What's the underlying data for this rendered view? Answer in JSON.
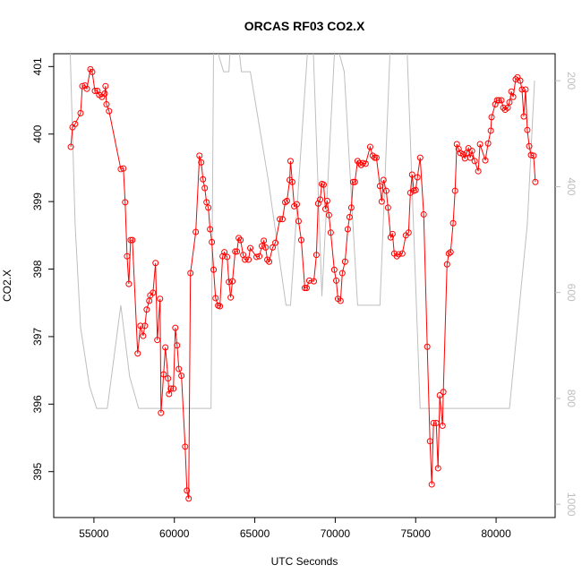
{
  "chart_data": {
    "type": "line",
    "title": "ORCAS RF03 CO2.X",
    "xlabel": "UTC Seconds",
    "ylabel": "CO2.X",
    "xlim": [
      52500,
      83670
    ],
    "ylim": [
      394.32,
      401.19
    ],
    "y2lim": [
      1025,
      149
    ],
    "xticks": [
      55000,
      60000,
      65000,
      70000,
      75000,
      80000
    ],
    "yticks": [
      395,
      396,
      397,
      398,
      399,
      400,
      401
    ],
    "y2ticks": [
      200,
      400,
      600,
      800,
      1000
    ],
    "grid": false,
    "series": [
      {
        "color": "#ff0000",
        "markers": true,
        "axis": "y",
        "x": [
          53560,
          53670,
          53830,
          54170,
          54280,
          54440,
          54560,
          54780,
          54890,
          55060,
          55220,
          55330,
          55500,
          55670,
          55720,
          55780,
          55940,
          56670,
          56830,
          56940,
          57060,
          57170,
          57280,
          57390,
          57720,
          57890,
          58060,
          58170,
          58280,
          58440,
          58500,
          58670,
          58830,
          58940,
          59110,
          59170,
          59330,
          59440,
          59610,
          59670,
          59780,
          59940,
          60060,
          60170,
          60280,
          60440,
          60670,
          60780,
          60890,
          61000,
          61330,
          61560,
          61670,
          61780,
          61890,
          62000,
          62110,
          62220,
          62330,
          62440,
          62560,
          62720,
          62830,
          63000,
          63110,
          63280,
          63390,
          63500,
          63610,
          63780,
          63890,
          64000,
          64110,
          64280,
          64390,
          64610,
          64720,
          65110,
          65280,
          65440,
          65560,
          65670,
          65780,
          65890,
          66110,
          66280,
          66560,
          66720,
          66890,
          67000,
          67170,
          67220,
          67330,
          67450,
          67610,
          67720,
          67890,
          68110,
          68220,
          68390,
          68670,
          68830,
          68940,
          69060,
          69170,
          69280,
          69390,
          69500,
          69610,
          69720,
          69940,
          70060,
          70170,
          70330,
          70440,
          70610,
          70780,
          70890,
          71000,
          71110,
          71220,
          71390,
          71500,
          71610,
          71720,
          71890,
          72170,
          72330,
          72450,
          72560,
          72780,
          72890,
          73000,
          73170,
          73280,
          73450,
          73560,
          73670,
          73830,
          73950,
          74170,
          74390,
          74560,
          74670,
          74780,
          74890,
          75000,
          75110,
          75280,
          75500,
          75720,
          75890,
          76000,
          76110,
          76280,
          76390,
          76500,
          76670,
          76720,
          76950,
          77060,
          77170,
          77330,
          77450,
          77560,
          77670,
          77780,
          77950,
          78060,
          78170,
          78280,
          78390,
          78500,
          78670,
          78890,
          79000,
          79330,
          79500,
          79670,
          79720,
          79950,
          80060,
          80170,
          80330,
          80450,
          80560,
          80720,
          80830,
          80950,
          81060,
          81220,
          81330,
          81500,
          81610,
          81720,
          81830,
          81940,
          82060,
          82170,
          82330,
          82440
        ],
        "values": [
          399.81,
          400.1,
          400.15,
          400.31,
          400.71,
          400.72,
          400.67,
          400.96,
          400.92,
          400.64,
          400.64,
          400.58,
          400.55,
          400.6,
          400.71,
          400.44,
          400.34,
          399.48,
          399.49,
          398.99,
          398.19,
          397.78,
          398.43,
          398.43,
          396.75,
          397.16,
          397.01,
          397.16,
          397.4,
          397.53,
          397.61,
          397.65,
          398.09,
          396.95,
          397.56,
          395.87,
          396.44,
          396.84,
          396.38,
          396.15,
          396.23,
          396.23,
          397.13,
          396.87,
          396.52,
          396.42,
          395.37,
          394.72,
          394.6,
          397.94,
          398.55,
          399.68,
          399.58,
          399.33,
          399.2,
          398.99,
          398.91,
          398.59,
          398.4,
          397.99,
          397.57,
          397.46,
          397.45,
          398.19,
          398.25,
          398.18,
          397.81,
          397.58,
          397.82,
          398.26,
          398.26,
          398.46,
          398.43,
          398.21,
          398.14,
          398.14,
          398.31,
          398.18,
          398.19,
          398.34,
          398.42,
          398.32,
          398.14,
          398.11,
          398.32,
          398.39,
          398.74,
          398.74,
          398.99,
          399.01,
          399.32,
          399.6,
          399.29,
          398.93,
          398.96,
          398.71,
          398.43,
          397.72,
          397.72,
          397.83,
          397.82,
          398.21,
          398.97,
          399.03,
          399.26,
          399.25,
          398.89,
          399.01,
          398.8,
          398.54,
          397.99,
          397.83,
          397.56,
          397.53,
          397.94,
          398.11,
          398.59,
          398.77,
          398.91,
          399.29,
          399.29,
          399.6,
          399.57,
          399.54,
          399.57,
          399.56,
          399.81,
          399.68,
          399.65,
          399.65,
          399.23,
          399.0,
          399.32,
          399.16,
          398.91,
          398.47,
          398.52,
          398.23,
          398.19,
          398.22,
          398.23,
          398.5,
          398.54,
          399.13,
          399.4,
          399.16,
          399.17,
          399.36,
          399.65,
          398.81,
          396.85,
          395.45,
          394.81,
          395.72,
          395.72,
          395.05,
          396.13,
          395.68,
          396.18,
          398.07,
          398.23,
          398.25,
          398.68,
          399.16,
          399.85,
          399.78,
          399.72,
          399.7,
          399.64,
          399.72,
          399.79,
          399.65,
          399.75,
          399.6,
          399.45,
          399.85,
          399.61,
          399.86,
          400.05,
          400.25,
          400.44,
          400.5,
          400.5,
          400.5,
          400.39,
          400.36,
          400.39,
          400.47,
          400.63,
          400.55,
          400.81,
          400.84,
          400.79,
          400.66,
          400.26,
          400.66,
          400.06,
          399.82,
          399.69,
          399.68,
          399.29
        ]
      },
      {
        "color": "#bebebe",
        "markers": false,
        "axis": "y2",
        "x": [
          53500,
          53830,
          54170,
          54720,
          55170,
          55830,
          56670,
          57220,
          57780,
          62280,
          62440,
          63060,
          63390,
          63500,
          63940,
          64170,
          64720,
          65830,
          66940,
          67220,
          68330,
          68610,
          69170,
          70000,
          70560,
          71390,
          72780,
          73440,
          74440,
          75280,
          80830,
          81940,
          82390
        ],
        "values": [
          120,
          471,
          666,
          776,
          819,
          819,
          624,
          759,
          819,
          819,
          120,
          183,
          183,
          120,
          120,
          183,
          183,
          386,
          624,
          624,
          120,
          120,
          607,
          120,
          183,
          624,
          624,
          120,
          120,
          819,
          819,
          471,
          200
        ]
      }
    ]
  }
}
